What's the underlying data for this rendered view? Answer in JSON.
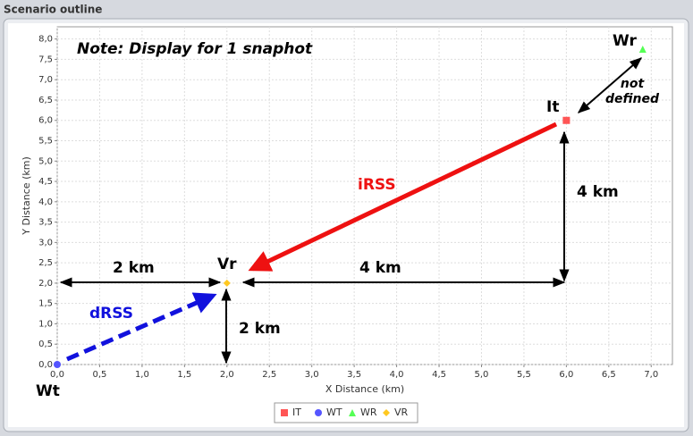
{
  "panel": {
    "title": "Scenario outline"
  },
  "chart_data": {
    "type": "scatter",
    "x_label": "X Distance (km)",
    "y_label": "Y Distance (km)",
    "xlim": [
      0,
      7.25
    ],
    "ylim": [
      0,
      8.3
    ],
    "grid": true,
    "xticks": [
      {
        "value": 0,
        "label": "0,0"
      },
      {
        "value": 0.5,
        "label": "0,5"
      },
      {
        "value": 1,
        "label": "1,0"
      },
      {
        "value": 1.5,
        "label": "1,5"
      },
      {
        "value": 2,
        "label": "2,0"
      },
      {
        "value": 2.5,
        "label": "2,5"
      },
      {
        "value": 3,
        "label": "3,0"
      },
      {
        "value": 3.5,
        "label": "3,5"
      },
      {
        "value": 4,
        "label": "4,0"
      },
      {
        "value": 4.5,
        "label": "4,5"
      },
      {
        "value": 5,
        "label": "5,0"
      },
      {
        "value": 5.5,
        "label": "5,5"
      },
      {
        "value": 6,
        "label": "6,0"
      },
      {
        "value": 6.5,
        "label": "6,5"
      },
      {
        "value": 7,
        "label": "7,0"
      }
    ],
    "yticks": [
      {
        "value": 0,
        "label": "0,0"
      },
      {
        "value": 0.5,
        "label": "0,5"
      },
      {
        "value": 1,
        "label": "1,0"
      },
      {
        "value": 1.5,
        "label": "1,5"
      },
      {
        "value": 2,
        "label": "2,0"
      },
      {
        "value": 2.5,
        "label": "2,5"
      },
      {
        "value": 3,
        "label": "3,0"
      },
      {
        "value": 3.5,
        "label": "3,5"
      },
      {
        "value": 4,
        "label": "4,0"
      },
      {
        "value": 4.5,
        "label": "4,5"
      },
      {
        "value": 5,
        "label": "5,0"
      },
      {
        "value": 5.5,
        "label": "5,5"
      },
      {
        "value": 6,
        "label": "6,0"
      },
      {
        "value": 6.5,
        "label": "6,5"
      },
      {
        "value": 7,
        "label": "7,0"
      },
      {
        "value": 7.5,
        "label": "7,5"
      },
      {
        "value": 8,
        "label": "8,0"
      }
    ],
    "series": [
      {
        "name": "IT",
        "color": "#ff5555",
        "marker": "square",
        "x": [
          6
        ],
        "y": [
          6
        ]
      },
      {
        "name": "WT",
        "color": "#5555ff",
        "marker": "circle",
        "x": [
          0
        ],
        "y": [
          0
        ]
      },
      {
        "name": "WR",
        "color": "#55ff55",
        "marker": "triangle",
        "x": [
          6.9
        ],
        "y": [
          7.75
        ]
      },
      {
        "name": "VR",
        "color": "#ffc820",
        "marker": "diamond",
        "x": [
          2
        ],
        "y": [
          2
        ]
      }
    ],
    "annotations": [
      "Note: Display for 1 snaphot",
      "Wr",
      "It",
      "Vr",
      "Wt",
      "iRSS",
      "dRSS",
      "2 km",
      "4 km",
      "4 km",
      "2 km",
      "not",
      "defined"
    ]
  }
}
